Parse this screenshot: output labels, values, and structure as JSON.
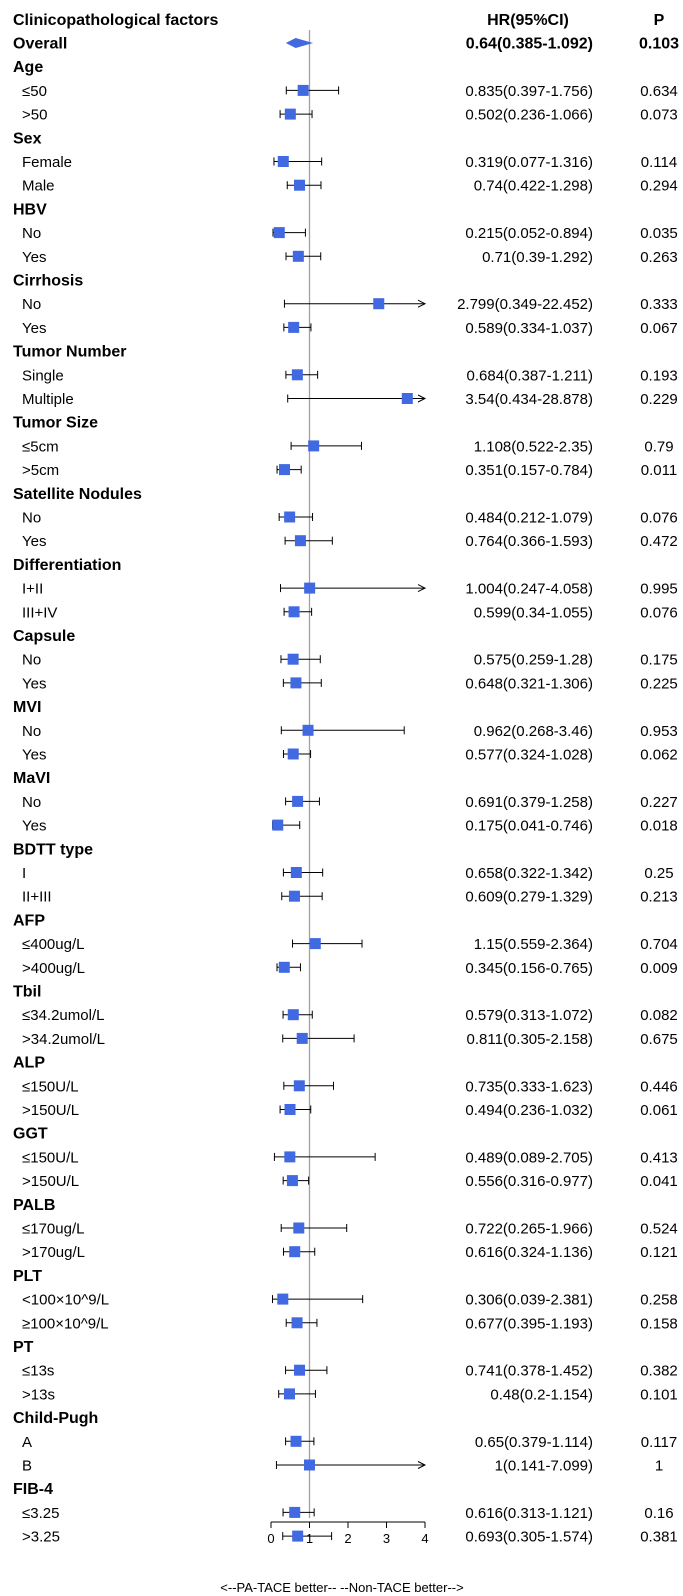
{
  "chart_data": {
    "type": "forest",
    "headers": {
      "factor": "Clinicopathological factors",
      "hr": "HR(95%CI)",
      "p": "P"
    },
    "x_axis": {
      "min": 0,
      "max": 4,
      "ticks": [
        "0",
        "1",
        "2",
        "3",
        "4"
      ],
      "reference_line": 1
    },
    "footer": "<--PA-TACE better-- --Non-TACE better-->",
    "colors": {
      "marker": "#4169e1",
      "reference_line": "#a0a0a0",
      "text": "#000000"
    },
    "rows": [
      {
        "kind": "overall",
        "label": "Overall",
        "hr": 0.64,
        "lo": 0.385,
        "hi": 1.092,
        "hr_text": "0.64(0.385-1.092)",
        "p": "0.103"
      },
      {
        "kind": "group",
        "label": "Age"
      },
      {
        "kind": "item",
        "label": "≤50",
        "hr": 0.835,
        "lo": 0.397,
        "hi": 1.756,
        "hr_text": "0.835(0.397-1.756)",
        "p": "0.634"
      },
      {
        "kind": "item",
        "label": ">50",
        "hr": 0.502,
        "lo": 0.236,
        "hi": 1.066,
        "hr_text": "0.502(0.236-1.066)",
        "p": "0.073"
      },
      {
        "kind": "group",
        "label": "Sex"
      },
      {
        "kind": "item",
        "label": "Female",
        "hr": 0.319,
        "lo": 0.077,
        "hi": 1.316,
        "hr_text": "0.319(0.077-1.316)",
        "p": "0.114"
      },
      {
        "kind": "item",
        "label": "Male",
        "hr": 0.74,
        "lo": 0.422,
        "hi": 1.298,
        "hr_text": "0.74(0.422-1.298)",
        "p": "0.294"
      },
      {
        "kind": "group",
        "label": "HBV"
      },
      {
        "kind": "item",
        "label": "No",
        "hr": 0.215,
        "lo": 0.052,
        "hi": 0.894,
        "hr_text": "0.215(0.052-0.894)",
        "p": "0.035"
      },
      {
        "kind": "item",
        "label": "Yes",
        "hr": 0.71,
        "lo": 0.39,
        "hi": 1.292,
        "hr_text": "0.71(0.39-1.292)",
        "p": "0.263"
      },
      {
        "kind": "group",
        "label": "Cirrhosis"
      },
      {
        "kind": "item",
        "label": "No",
        "hr": 2.799,
        "lo": 0.349,
        "hi": 22.452,
        "hr_text": "2.799(0.349-22.452)",
        "p": "0.333"
      },
      {
        "kind": "item",
        "label": "Yes",
        "hr": 0.589,
        "lo": 0.334,
        "hi": 1.037,
        "hr_text": "0.589(0.334-1.037)",
        "p": "0.067"
      },
      {
        "kind": "group",
        "label": "Tumor Number"
      },
      {
        "kind": "item",
        "label": "Single",
        "hr": 0.684,
        "lo": 0.387,
        "hi": 1.211,
        "hr_text": "0.684(0.387-1.211)",
        "p": "0.193"
      },
      {
        "kind": "item",
        "label": "Multiple",
        "hr": 3.54,
        "lo": 0.434,
        "hi": 28.878,
        "hr_text": "3.54(0.434-28.878)",
        "p": "0.229"
      },
      {
        "kind": "group",
        "label": "Tumor Size"
      },
      {
        "kind": "item",
        "label": "≤5cm",
        "hr": 1.108,
        "lo": 0.522,
        "hi": 2.35,
        "hr_text": "1.108(0.522-2.35)",
        "p": "0.79"
      },
      {
        "kind": "item",
        "label": ">5cm",
        "hr": 0.351,
        "lo": 0.157,
        "hi": 0.784,
        "hr_text": "0.351(0.157-0.784)",
        "p": "0.011"
      },
      {
        "kind": "group",
        "label": "Satellite Nodules"
      },
      {
        "kind": "item",
        "label": "No",
        "hr": 0.484,
        "lo": 0.212,
        "hi": 1.079,
        "hr_text": "0.484(0.212-1.079)",
        "p": "0.076"
      },
      {
        "kind": "item",
        "label": "Yes",
        "hr": 0.764,
        "lo": 0.366,
        "hi": 1.593,
        "hr_text": "0.764(0.366-1.593)",
        "p": "0.472"
      },
      {
        "kind": "group",
        "label": "Differentiation"
      },
      {
        "kind": "item",
        "label": "I+II",
        "hr": 1.004,
        "lo": 0.247,
        "hi": 4.058,
        "hr_text": "1.004(0.247-4.058)",
        "p": "0.995"
      },
      {
        "kind": "item",
        "label": "III+IV",
        "hr": 0.599,
        "lo": 0.34,
        "hi": 1.055,
        "hr_text": "0.599(0.34-1.055)",
        "p": "0.076"
      },
      {
        "kind": "group",
        "label": "Capsule"
      },
      {
        "kind": "item",
        "label": "No",
        "hr": 0.575,
        "lo": 0.259,
        "hi": 1.28,
        "hr_text": "0.575(0.259-1.28)",
        "p": "0.175"
      },
      {
        "kind": "item",
        "label": "Yes",
        "hr": 0.648,
        "lo": 0.321,
        "hi": 1.306,
        "hr_text": "0.648(0.321-1.306)",
        "p": "0.225"
      },
      {
        "kind": "group",
        "label": "MVI"
      },
      {
        "kind": "item",
        "label": "No",
        "hr": 0.962,
        "lo": 0.268,
        "hi": 3.46,
        "hr_text": "0.962(0.268-3.46)",
        "p": "0.953"
      },
      {
        "kind": "item",
        "label": "Yes",
        "hr": 0.577,
        "lo": 0.324,
        "hi": 1.028,
        "hr_text": "0.577(0.324-1.028)",
        "p": "0.062"
      },
      {
        "kind": "group",
        "label": "MaVI"
      },
      {
        "kind": "item",
        "label": "No",
        "hr": 0.691,
        "lo": 0.379,
        "hi": 1.258,
        "hr_text": "0.691(0.379-1.258)",
        "p": "0.227"
      },
      {
        "kind": "item",
        "label": "Yes",
        "hr": 0.175,
        "lo": 0.041,
        "hi": 0.746,
        "hr_text": "0.175(0.041-0.746)",
        "p": "0.018"
      },
      {
        "kind": "group",
        "label": "BDTT type"
      },
      {
        "kind": "item",
        "label": "I",
        "hr": 0.658,
        "lo": 0.322,
        "hi": 1.342,
        "hr_text": "0.658(0.322-1.342)",
        "p": "0.25"
      },
      {
        "kind": "item",
        "label": "II+III",
        "hr": 0.609,
        "lo": 0.279,
        "hi": 1.329,
        "hr_text": "0.609(0.279-1.329)",
        "p": "0.213"
      },
      {
        "kind": "group",
        "label": "AFP"
      },
      {
        "kind": "item",
        "label": "≤400ug/L",
        "hr": 1.15,
        "lo": 0.559,
        "hi": 2.364,
        "hr_text": "1.15(0.559-2.364)",
        "p": "0.704"
      },
      {
        "kind": "item",
        "label": ">400ug/L",
        "hr": 0.345,
        "lo": 0.156,
        "hi": 0.765,
        "hr_text": "0.345(0.156-0.765)",
        "p": "0.009"
      },
      {
        "kind": "group",
        "label": "Tbil"
      },
      {
        "kind": "item",
        "label": "≤34.2umol/L",
        "hr": 0.579,
        "lo": 0.313,
        "hi": 1.072,
        "hr_text": "0.579(0.313-1.072)",
        "p": "0.082"
      },
      {
        "kind": "item",
        "label": ">34.2umol/L",
        "hr": 0.811,
        "lo": 0.305,
        "hi": 2.158,
        "hr_text": "0.811(0.305-2.158)",
        "p": "0.675"
      },
      {
        "kind": "group",
        "label": "ALP"
      },
      {
        "kind": "item",
        "label": "≤150U/L",
        "hr": 0.735,
        "lo": 0.333,
        "hi": 1.623,
        "hr_text": "0.735(0.333-1.623)",
        "p": "0.446"
      },
      {
        "kind": "item",
        "label": ">150U/L",
        "hr": 0.494,
        "lo": 0.236,
        "hi": 1.032,
        "hr_text": "0.494(0.236-1.032)",
        "p": "0.061"
      },
      {
        "kind": "group",
        "label": "GGT"
      },
      {
        "kind": "item",
        "label": "≤150U/L",
        "hr": 0.489,
        "lo": 0.089,
        "hi": 2.705,
        "hr_text": "0.489(0.089-2.705)",
        "p": "0.413"
      },
      {
        "kind": "item",
        "label": ">150U/L",
        "hr": 0.556,
        "lo": 0.316,
        "hi": 0.977,
        "hr_text": "0.556(0.316-0.977)",
        "p": "0.041"
      },
      {
        "kind": "group",
        "label": "PALB"
      },
      {
        "kind": "item",
        "label": "≤170ug/L",
        "hr": 0.722,
        "lo": 0.265,
        "hi": 1.966,
        "hr_text": "0.722(0.265-1.966)",
        "p": "0.524"
      },
      {
        "kind": "item",
        "label": ">170ug/L",
        "hr": 0.616,
        "lo": 0.324,
        "hi": 1.136,
        "hr_text": "0.616(0.324-1.136)",
        "p": "0.121"
      },
      {
        "kind": "group",
        "label": "PLT"
      },
      {
        "kind": "item",
        "label": "<100×10^9/L",
        "hr": 0.306,
        "lo": 0.039,
        "hi": 2.381,
        "hr_text": "0.306(0.039-2.381)",
        "p": "0.258"
      },
      {
        "kind": "item",
        "label": "≥100×10^9/L",
        "hr": 0.677,
        "lo": 0.395,
        "hi": 1.193,
        "hr_text": "0.677(0.395-1.193)",
        "p": "0.158"
      },
      {
        "kind": "group",
        "label": "PT"
      },
      {
        "kind": "item",
        "label": "≤13s",
        "hr": 0.741,
        "lo": 0.378,
        "hi": 1.452,
        "hr_text": "0.741(0.378-1.452)",
        "p": "0.382"
      },
      {
        "kind": "item",
        "label": ">13s",
        "hr": 0.48,
        "lo": 0.2,
        "hi": 1.154,
        "hr_text": "0.48(0.2-1.154)",
        "p": "0.101"
      },
      {
        "kind": "group",
        "label": "Child-Pugh"
      },
      {
        "kind": "item",
        "label": "A",
        "hr": 0.65,
        "lo": 0.379,
        "hi": 1.114,
        "hr_text": "0.65(0.379-1.114)",
        "p": "0.117"
      },
      {
        "kind": "item",
        "label": "B",
        "hr": 1,
        "lo": 0.141,
        "hi": 7.099,
        "hr_text": "1(0.141-7.099)",
        "p": "1"
      },
      {
        "kind": "group",
        "label": "FIB-4"
      },
      {
        "kind": "item",
        "label": "≤3.25",
        "hr": 0.616,
        "lo": 0.313,
        "hi": 1.121,
        "hr_text": "0.616(0.313-1.121)",
        "p": "0.16"
      },
      {
        "kind": "item",
        "label": ">3.25",
        "hr": 0.693,
        "lo": 0.305,
        "hi": 1.574,
        "hr_text": "0.693(0.305-1.574)",
        "p": "0.381"
      }
    ]
  }
}
